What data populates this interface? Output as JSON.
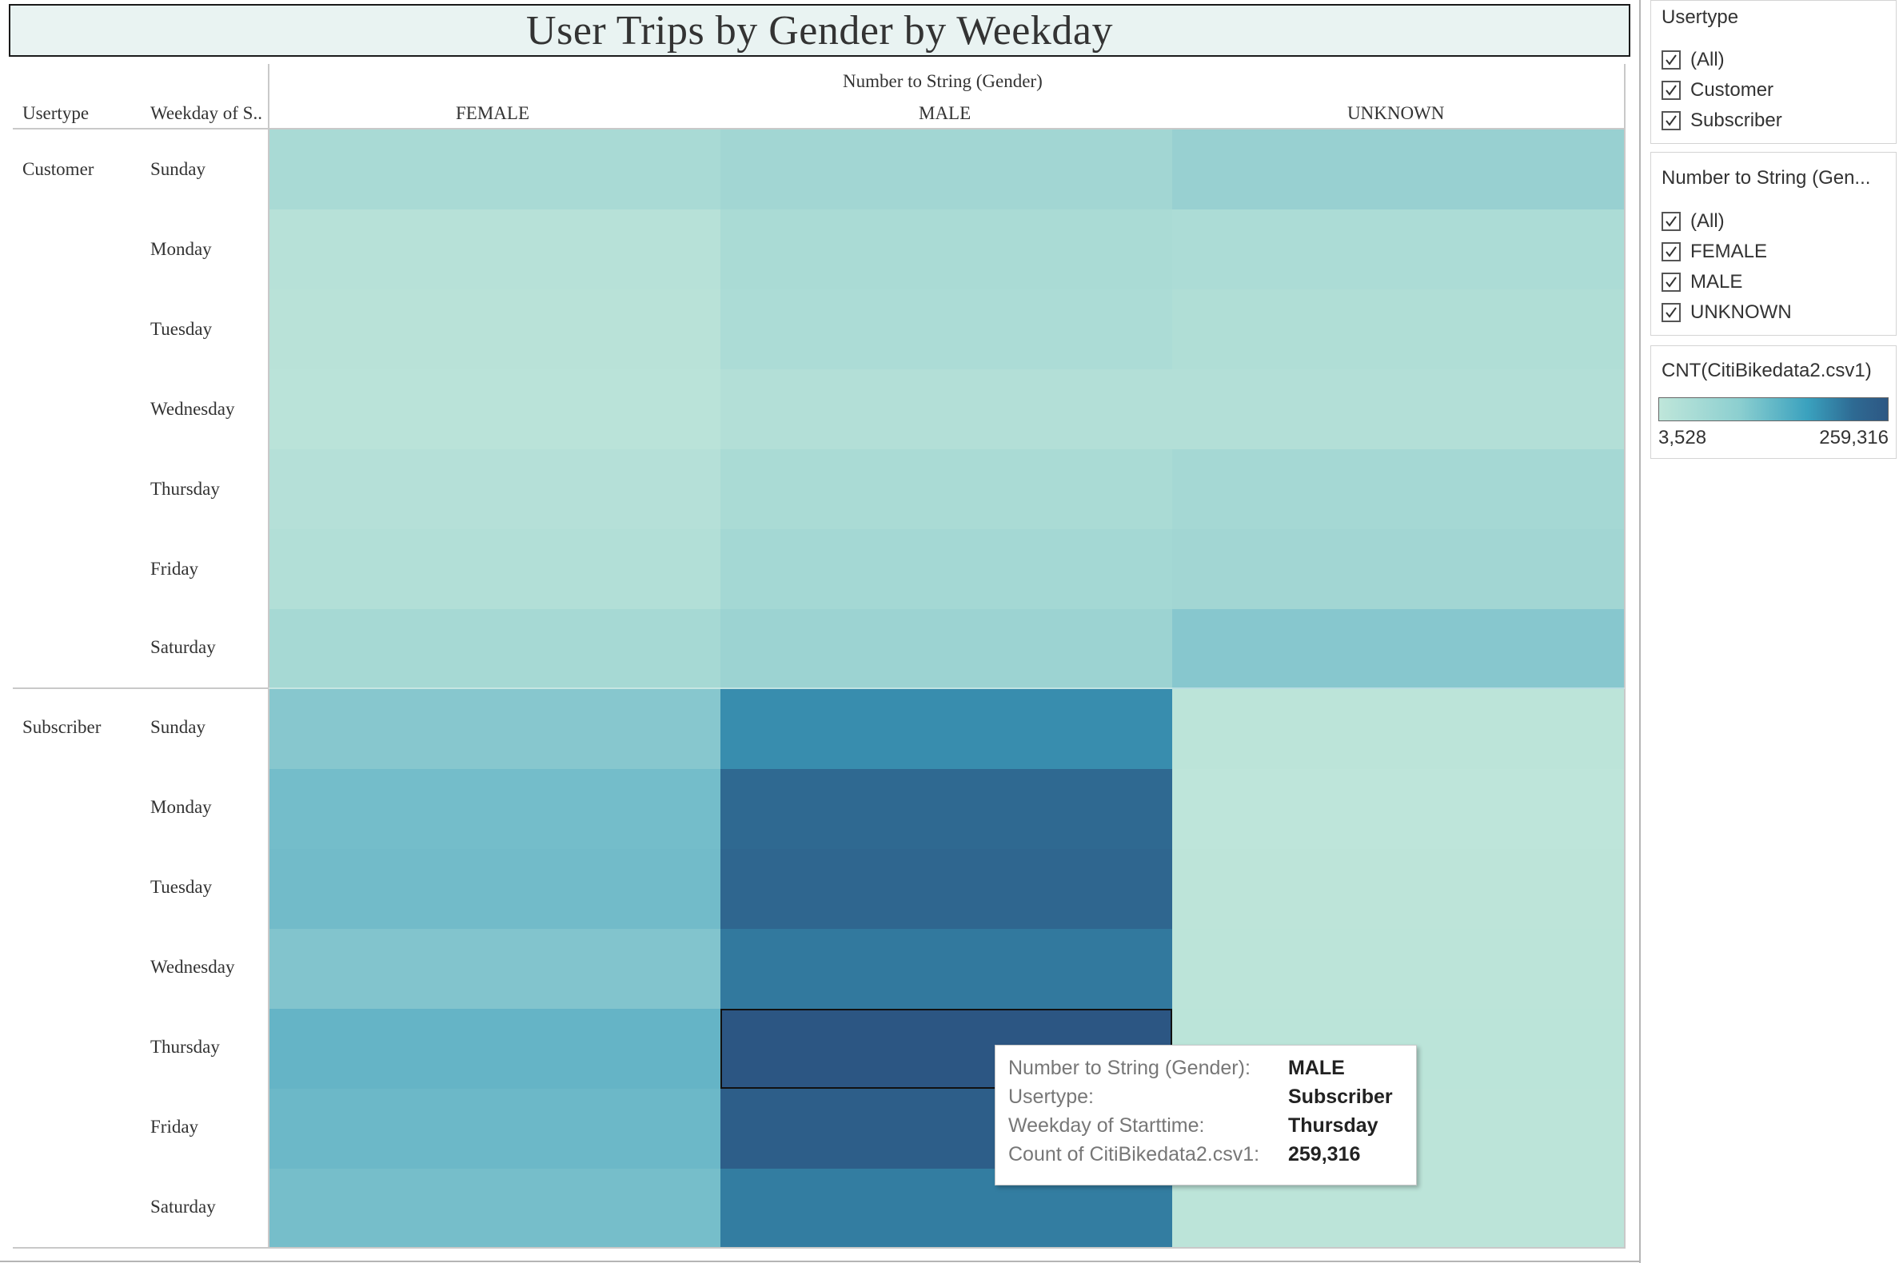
{
  "chart_data": {
    "type": "heatmap",
    "title": "User Trips by Gender by Weekday",
    "column_group_label": "Number to String (Gender)",
    "row_header_1": "Usertype",
    "row_header_2": "Weekday of S..",
    "columns": [
      "FEMALE",
      "MALE",
      "UNKNOWN"
    ],
    "usertypes": [
      "Customer",
      "Subscriber"
    ],
    "weekdays": [
      "Sunday",
      "Monday",
      "Tuesday",
      "Wednesday",
      "Thursday",
      "Friday",
      "Saturday"
    ],
    "color_range": [
      3528,
      259316
    ],
    "values": {
      "Customer": [
        [
          30000,
          38000,
          50000
        ],
        [
          14000,
          28000,
          26000
        ],
        [
          12000,
          26000,
          22000
        ],
        [
          10000,
          18000,
          18000
        ],
        [
          16000,
          28000,
          34000
        ],
        [
          19000,
          35000,
          38000
        ],
        [
          33000,
          45000,
          70000
        ]
      ],
      "Subscriber": [
        [
          70000,
          168000,
          8000
        ],
        [
          90000,
          225000,
          6000
        ],
        [
          92000,
          230000,
          7000
        ],
        [
          76000,
          195000,
          8000
        ],
        [
          105000,
          259316,
          9000
        ],
        [
          98000,
          245000,
          8000
        ],
        [
          88000,
          190000,
          8000
        ]
      ]
    },
    "highlighted_cell": {
      "usertype": "Subscriber",
      "weekday": "Thursday",
      "gender": "MALE"
    }
  },
  "filters": {
    "usertype": {
      "title": "Usertype",
      "items": [
        "(All)",
        "Customer",
        "Subscriber"
      ]
    },
    "gender": {
      "title": "Number to String (Gen...",
      "items": [
        "(All)",
        "FEMALE",
        "MALE",
        "UNKNOWN"
      ]
    }
  },
  "legend": {
    "title": "CNT(CitiBikedata2.csv1)",
    "min_label": "3,528",
    "max_label": "259,316"
  },
  "tooltip": {
    "rows": [
      {
        "key": "Number to String (Gender):",
        "value": "MALE"
      },
      {
        "key": "Usertype:",
        "value": "Subscriber"
      },
      {
        "key": "Weekday of Starttime:",
        "value": "Thursday"
      },
      {
        "key": "Count of CitiBikedata2.csv1:",
        "value": "259,316"
      }
    ]
  }
}
